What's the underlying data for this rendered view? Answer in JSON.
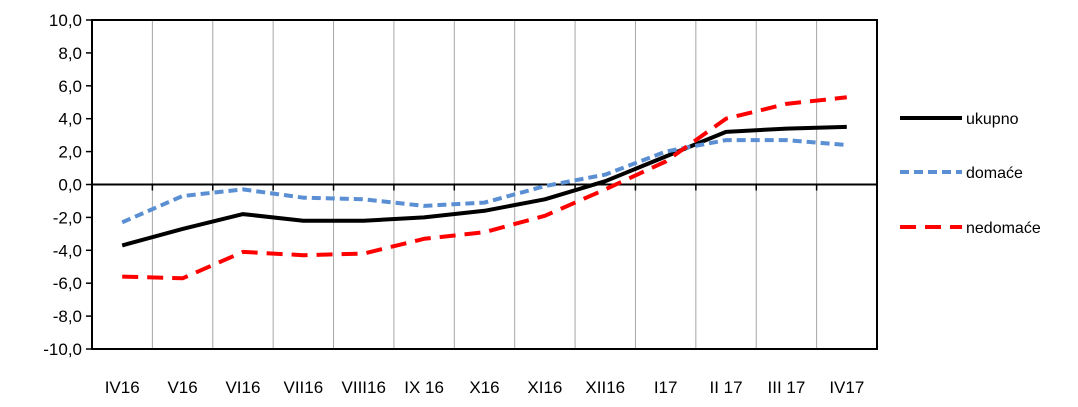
{
  "chart_data": {
    "type": "line",
    "title": "",
    "xlabel": "",
    "ylabel": "",
    "categories": [
      "IV16",
      "V16",
      "VI16",
      "VII16",
      "VIII16",
      "IX 16",
      "X16",
      "XI16",
      "XII16",
      "I17",
      "II 17",
      "III 17",
      "IV17"
    ],
    "ylim": [
      -10,
      10
    ],
    "yticks": [
      10,
      8,
      6,
      4,
      2,
      0,
      -2,
      -4,
      -6,
      -8,
      -10
    ],
    "ytick_labels": [
      "10,0",
      "8,0",
      "6,0",
      "4,0",
      "2,0",
      "0,0",
      "-2,0",
      "-4,0",
      "-6,0",
      "-8,0",
      "-10,0"
    ],
    "grid": "vertical",
    "legend_position": "right",
    "series": [
      {
        "name": "ukupno",
        "color": "#000000",
        "style": "solid",
        "values": [
          -3.7,
          -2.7,
          -1.8,
          -2.2,
          -2.2,
          -2.0,
          -1.6,
          -0.9,
          0.2,
          1.7,
          3.2,
          3.4,
          3.5
        ]
      },
      {
        "name": "domaće",
        "color": "#5b8fd4",
        "style": "short-dash",
        "values": [
          -2.3,
          -0.7,
          -0.3,
          -0.8,
          -0.9,
          -1.3,
          -1.1,
          -0.1,
          0.6,
          2.0,
          2.7,
          2.7,
          2.4
        ]
      },
      {
        "name": "nedomaće",
        "color": "#ff0000",
        "style": "long-dash",
        "values": [
          -5.6,
          -5.7,
          -4.1,
          -4.3,
          -4.2,
          -3.3,
          -2.9,
          -1.9,
          -0.3,
          1.4,
          4.0,
          4.9,
          5.3
        ]
      }
    ]
  }
}
